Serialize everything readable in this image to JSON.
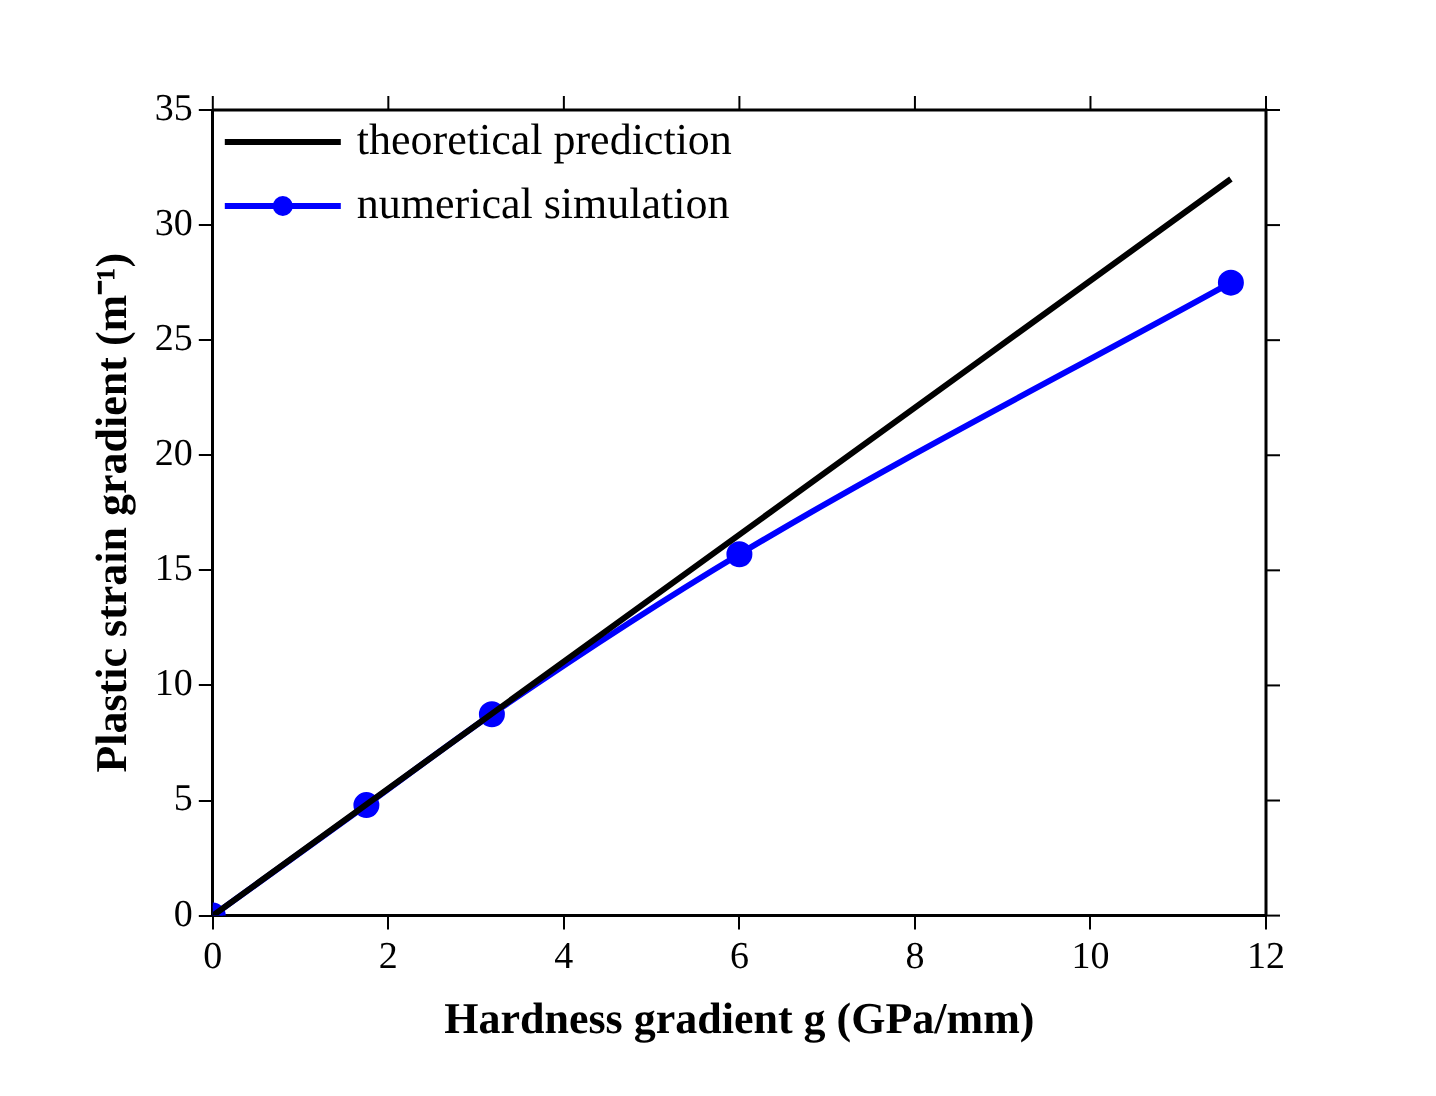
{
  "chart_data": {
    "type": "line",
    "xlabel": "Hardness gradient g (GPa/mm)",
    "ylabel": "Plastic strain gradient (m⁻¹)",
    "xlim": [
      0,
      12
    ],
    "xticks": [
      0,
      2,
      4,
      6,
      8,
      10,
      12
    ],
    "ylim": [
      0,
      35
    ],
    "yticks": [
      0,
      5,
      10,
      15,
      20,
      25,
      30,
      35
    ],
    "grid": false,
    "legend": "top left",
    "series": [
      {
        "name": "theoretical prediction",
        "color": "#000000",
        "x": [
          0,
          11.6
        ],
        "values": [
          0,
          32
        ],
        "marker": "none",
        "line_style": "solid"
      },
      {
        "name": "numerical simulation",
        "color": "#0000ff",
        "x": [
          0,
          1.75,
          3.18,
          6.0,
          11.6
        ],
        "values": [
          0,
          4.8,
          8.75,
          15.7,
          27.5
        ],
        "marker": "circle",
        "line_style": "solid"
      }
    ]
  }
}
